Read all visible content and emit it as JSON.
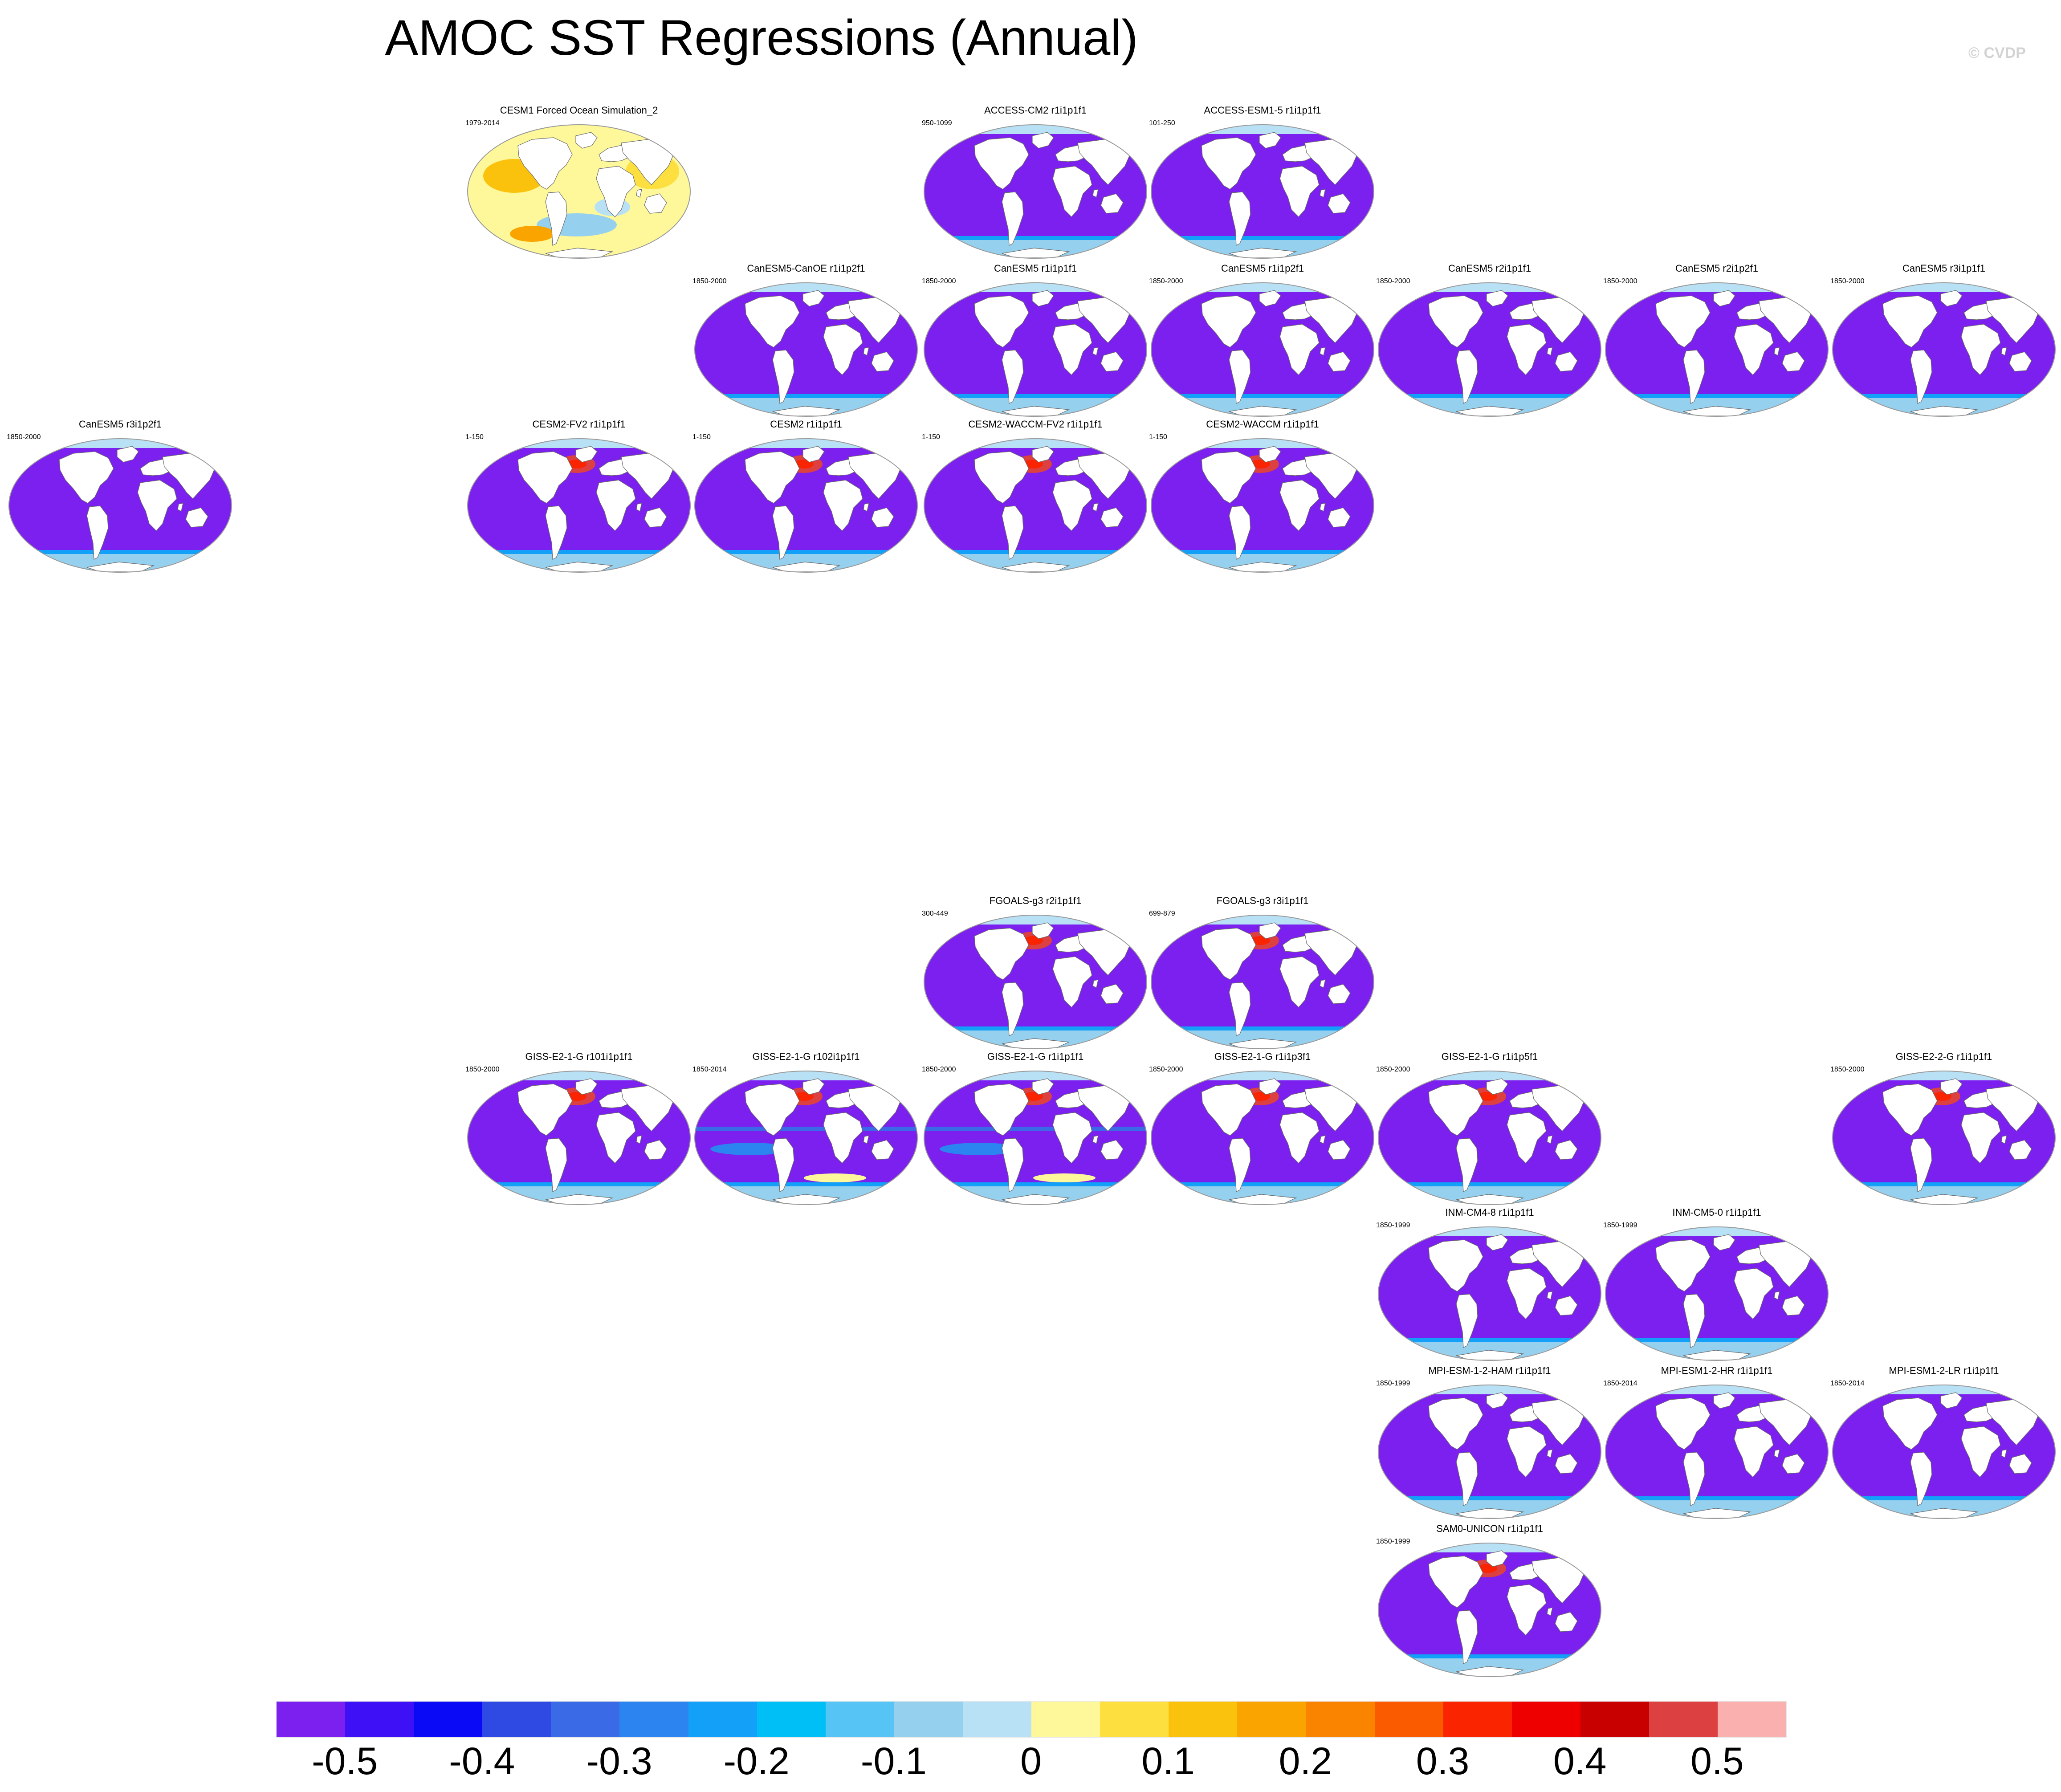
{
  "title": "AMOC SST Regressions (Annual)",
  "copyright": "© CVDP",
  "colors": {
    "ocean_default": "#7b20ee",
    "land": "#ffffff",
    "coast": "#6a6a6a"
  },
  "chart_data": {
    "type": "heatmap",
    "title": "AMOC SST Regressions (Annual)",
    "colorbar": {
      "colors": [
        "#7b20ee",
        "#3d10f5",
        "#0a0af7",
        "#2f4ae3",
        "#3a6ae5",
        "#2c84f0",
        "#12a0f8",
        "#00bff6",
        "#56c4f4",
        "#95d0ee",
        "#b8e1f5",
        "#fef89a",
        "#fde040",
        "#fbc20d",
        "#faa400",
        "#fa8300",
        "#fa5a00",
        "#fa2400",
        "#ee0000",
        "#c80000",
        "#dc4040",
        "#fbb0b0"
      ],
      "tick_labels": [
        "-0.5",
        "-0.4",
        "-0.3",
        "-0.2",
        "-0.1",
        "0",
        "0.1",
        "0.2",
        "0.3",
        "0.4",
        "0.5"
      ],
      "range": [
        -0.55,
        0.55
      ]
    },
    "panels": [
      {
        "name": "CESM1 Forced Ocean Simulation_2",
        "period": "1979-2014",
        "style": "obs"
      },
      {
        "name": "ACCESS-CM2 r1i1p1f1",
        "period": "950-1099",
        "style": "cool"
      },
      {
        "name": "ACCESS-ESM1-5 r1i1p1f1",
        "period": "101-250",
        "style": "cool"
      },
      {
        "name": "CanESM5-CanOE r1i1p2f1",
        "period": "1850-2000",
        "style": "cool"
      },
      {
        "name": "CanESM5 r1i1p1f1",
        "period": "1850-2000",
        "style": "cool"
      },
      {
        "name": "CanESM5 r1i1p2f1",
        "period": "1850-2000",
        "style": "cool"
      },
      {
        "name": "CanESM5 r2i1p1f1",
        "period": "1850-2000",
        "style": "cool"
      },
      {
        "name": "CanESM5 r2i1p2f1",
        "period": "1850-2000",
        "style": "cool"
      },
      {
        "name": "CanESM5 r3i1p1f1",
        "period": "1850-2000",
        "style": "cool"
      },
      {
        "name": "CanESM5 r3i1p2f1",
        "period": "1850-2000",
        "style": "cool"
      },
      {
        "name": "CESM2-FV2 r1i1p1f1",
        "period": "1-150",
        "style": "natl"
      },
      {
        "name": "CESM2 r1i1p1f1",
        "period": "1-150",
        "style": "natl"
      },
      {
        "name": "CESM2-WACCM-FV2 r1i1p1f1",
        "period": "1-150",
        "style": "natl"
      },
      {
        "name": "CESM2-WACCM r1i1p1f1",
        "period": "1-150",
        "style": "natl"
      },
      {
        "name": "FGOALS-g3 r2i1p1f1",
        "period": "300-449",
        "style": "natl"
      },
      {
        "name": "FGOALS-g3 r3i1p1f1",
        "period": "699-879",
        "style": "natl"
      },
      {
        "name": "GISS-E2-1-G r101i1p1f1",
        "period": "1850-2000",
        "style": "natl"
      },
      {
        "name": "GISS-E2-1-G r102i1p1f1",
        "period": "1850-2014",
        "style": "mixed"
      },
      {
        "name": "GISS-E2-1-G r1i1p1f1",
        "period": "1850-2000",
        "style": "mixed"
      },
      {
        "name": "GISS-E2-1-G r1i1p3f1",
        "period": "1850-2000",
        "style": "natl"
      },
      {
        "name": "GISS-E2-1-G r1i1p5f1",
        "period": "1850-2000",
        "style": "natl"
      },
      {
        "name": "GISS-E2-2-G r1i1p1f1",
        "period": "1850-2000",
        "style": "natl"
      },
      {
        "name": "INM-CM4-8 r1i1p1f1",
        "period": "1850-1999",
        "style": "cool"
      },
      {
        "name": "INM-CM5-0 r1i1p1f1",
        "period": "1850-1999",
        "style": "cool"
      },
      {
        "name": "MPI-ESM-1-2-HAM r1i1p1f1",
        "period": "1850-1999",
        "style": "cool"
      },
      {
        "name": "MPI-ESM1-2-HR r1i1p1f1",
        "period": "1850-2014",
        "style": "cool"
      },
      {
        "name": "MPI-ESM1-2-LR r1i1p1f1",
        "period": "1850-2014",
        "style": "cool"
      },
      {
        "name": "SAM0-UNICON r1i1p1f1",
        "period": "1850-1999",
        "style": "natl"
      }
    ]
  }
}
